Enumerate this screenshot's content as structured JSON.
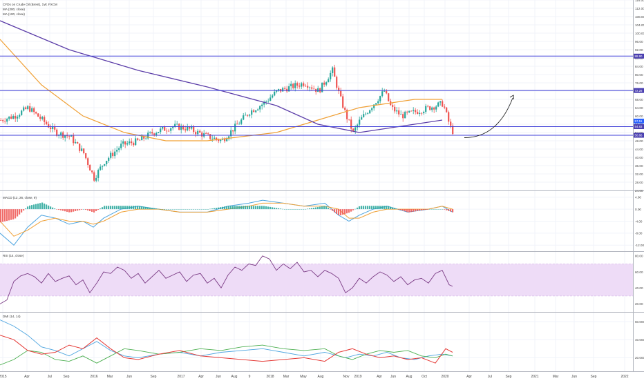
{
  "chart_data": {
    "type": "candlestick",
    "legend": {
      "title": "CFDs on Crude Oil (Brent), 1W, FXCM",
      "ma1": "MA (200, close)",
      "ma2": "MA (100, close)"
    },
    "panes": {
      "macd": "MACD (12, 26, close, 9)",
      "rsi": "RSI (14, close)",
      "dmi": "DMI (14, 14)"
    },
    "colors": {
      "up": "#26a69a",
      "down": "#ef5350",
      "ma_orange": "#f0a035",
      "ma_purple": "#5b3da8",
      "hline": "#3f3fd8",
      "rsi_band": "#eedcf7",
      "rsi_line": "#7a3a84",
      "macd_line": "#4aa3df",
      "signal_line": "#f0a035",
      "di_plus": "#4caf50",
      "di_minus": "#e53935",
      "adx": "#4aa3df"
    },
    "price_axis": {
      "ticks": [
        "116.00",
        "112.00",
        "108.00",
        "104.00",
        "100.00",
        "96.00",
        "92.00",
        "88.00",
        "84.00",
        "80.00",
        "76.00",
        "72.00",
        "68.00",
        "64.00",
        "60.00",
        "56.00",
        "52.00",
        "48.00",
        "44.00",
        "40.00",
        "36.00",
        "32.00",
        "28.00",
        "24.00"
      ],
      "tags": [
        "88.90",
        "72.28",
        "57.51",
        "54.83",
        "50.66"
      ],
      "ylim": [
        24,
        116
      ]
    },
    "horizontal_levels": [
      88.9,
      72.28,
      54.83,
      50.66
    ],
    "ma200": [
      [
        0,
        106
      ],
      [
        100,
        92
      ],
      [
        200,
        82
      ],
      [
        300,
        74
      ],
      [
        400,
        65
      ],
      [
        460,
        56
      ],
      [
        520,
        52
      ],
      [
        560,
        54
      ],
      [
        600,
        56
      ],
      [
        640,
        58
      ]
    ],
    "ma100": [
      [
        0,
        97
      ],
      [
        60,
        75
      ],
      [
        120,
        60
      ],
      [
        180,
        52
      ],
      [
        240,
        48
      ],
      [
        300,
        48
      ],
      [
        350,
        50
      ],
      [
        400,
        52
      ],
      [
        460,
        58
      ],
      [
        520,
        64
      ],
      [
        600,
        68
      ],
      [
        640,
        68
      ]
    ],
    "closes": [
      [
        0,
        58
      ],
      [
        20,
        60
      ],
      [
        40,
        64
      ],
      [
        60,
        58
      ],
      [
        80,
        52
      ],
      [
        100,
        50
      ],
      [
        120,
        42
      ],
      [
        135,
        30
      ],
      [
        150,
        38
      ],
      [
        175,
        46
      ],
      [
        200,
        48
      ],
      [
        220,
        52
      ],
      [
        250,
        55
      ],
      [
        270,
        54
      ],
      [
        300,
        50
      ],
      [
        320,
        48
      ],
      [
        340,
        55
      ],
      [
        360,
        62
      ],
      [
        380,
        66
      ],
      [
        400,
        72
      ],
      [
        420,
        74
      ],
      [
        440,
        76
      ],
      [
        460,
        72
      ],
      [
        480,
        82
      ],
      [
        490,
        70
      ],
      [
        500,
        60
      ],
      [
        510,
        52
      ],
      [
        520,
        58
      ],
      [
        540,
        66
      ],
      [
        555,
        72
      ],
      [
        565,
        64
      ],
      [
        580,
        60
      ],
      [
        600,
        62
      ],
      [
        620,
        64
      ],
      [
        640,
        66
      ],
      [
        650,
        55
      ],
      [
        655,
        52
      ]
    ],
    "macd_axis": {
      "ticks": [
        "4.00",
        "0.00",
        "-4.00",
        "-8.00",
        "-12.00"
      ],
      "ylim": [
        -14,
        6
      ]
    },
    "macd": [
      [
        0,
        -8
      ],
      [
        20,
        -12
      ],
      [
        40,
        -6
      ],
      [
        60,
        -2
      ],
      [
        80,
        -3
      ],
      [
        100,
        -5
      ],
      [
        120,
        -4
      ],
      [
        135,
        -6
      ],
      [
        150,
        -3
      ],
      [
        175,
        0
      ],
      [
        200,
        1
      ],
      [
        230,
        0
      ],
      [
        260,
        -1
      ],
      [
        300,
        -1
      ],
      [
        330,
        1
      ],
      [
        360,
        2
      ],
      [
        380,
        3
      ],
      [
        410,
        2
      ],
      [
        440,
        1
      ],
      [
        470,
        2
      ],
      [
        490,
        -2
      ],
      [
        505,
        -4
      ],
      [
        520,
        -2
      ],
      [
        540,
        0
      ],
      [
        560,
        1
      ],
      [
        590,
        -1
      ],
      [
        620,
        0
      ],
      [
        640,
        1
      ],
      [
        655,
        -1
      ]
    ],
    "signal": [
      [
        0,
        -4
      ],
      [
        20,
        -9
      ],
      [
        40,
        -7
      ],
      [
        60,
        -4
      ],
      [
        80,
        -3
      ],
      [
        100,
        -4
      ],
      [
        120,
        -4
      ],
      [
        135,
        -5
      ],
      [
        150,
        -4
      ],
      [
        175,
        -1
      ],
      [
        200,
        0
      ],
      [
        230,
        0
      ],
      [
        260,
        -1
      ],
      [
        300,
        -1
      ],
      [
        330,
        0
      ],
      [
        360,
        1
      ],
      [
        380,
        2
      ],
      [
        410,
        2
      ],
      [
        440,
        1
      ],
      [
        470,
        1
      ],
      [
        490,
        0
      ],
      [
        505,
        -3
      ],
      [
        520,
        -3
      ],
      [
        540,
        -1
      ],
      [
        560,
        0
      ],
      [
        590,
        0
      ],
      [
        620,
        0
      ],
      [
        640,
        1
      ],
      [
        655,
        0
      ]
    ],
    "rsi_axis": {
      "ticks": [
        "80.00",
        "60.00",
        "40.00",
        "20.00"
      ],
      "ylim": [
        10,
        85
      ],
      "band": [
        30,
        70
      ]
    },
    "rsi": [
      [
        0,
        20
      ],
      [
        10,
        25
      ],
      [
        20,
        48
      ],
      [
        30,
        55
      ],
      [
        40,
        58
      ],
      [
        50,
        54
      ],
      [
        60,
        46
      ],
      [
        70,
        58
      ],
      [
        80,
        48
      ],
      [
        90,
        52
      ],
      [
        100,
        55
      ],
      [
        110,
        44
      ],
      [
        120,
        50
      ],
      [
        130,
        34
      ],
      [
        140,
        46
      ],
      [
        150,
        60
      ],
      [
        160,
        58
      ],
      [
        170,
        66
      ],
      [
        180,
        62
      ],
      [
        190,
        52
      ],
      [
        200,
        58
      ],
      [
        210,
        46
      ],
      [
        220,
        54
      ],
      [
        230,
        62
      ],
      [
        240,
        52
      ],
      [
        250,
        56
      ],
      [
        260,
        60
      ],
      [
        270,
        48
      ],
      [
        280,
        56
      ],
      [
        290,
        58
      ],
      [
        300,
        46
      ],
      [
        310,
        52
      ],
      [
        320,
        40
      ],
      [
        330,
        56
      ],
      [
        340,
        66
      ],
      [
        350,
        62
      ],
      [
        360,
        70
      ],
      [
        370,
        68
      ],
      [
        380,
        80
      ],
      [
        390,
        76
      ],
      [
        400,
        62
      ],
      [
        410,
        70
      ],
      [
        420,
        64
      ],
      [
        430,
        72
      ],
      [
        440,
        60
      ],
      [
        450,
        62
      ],
      [
        460,
        54
      ],
      [
        470,
        62
      ],
      [
        480,
        58
      ],
      [
        490,
        52
      ],
      [
        500,
        34
      ],
      [
        510,
        40
      ],
      [
        520,
        52
      ],
      [
        530,
        46
      ],
      [
        540,
        54
      ],
      [
        550,
        60
      ],
      [
        560,
        56
      ],
      [
        570,
        48
      ],
      [
        580,
        54
      ],
      [
        590,
        44
      ],
      [
        600,
        50
      ],
      [
        610,
        52
      ],
      [
        620,
        46
      ],
      [
        630,
        58
      ],
      [
        640,
        62
      ],
      [
        650,
        44
      ],
      [
        655,
        42
      ]
    ],
    "dmi_axis": {
      "ticks": [
        "60.0000",
        "40.0000",
        "20.0000"
      ],
      "ylim": [
        5,
        70
      ]
    },
    "adx": [
      [
        0,
        62
      ],
      [
        20,
        55
      ],
      [
        40,
        45
      ],
      [
        60,
        32
      ],
      [
        80,
        28
      ],
      [
        100,
        22
      ],
      [
        120,
        30
      ],
      [
        140,
        38
      ],
      [
        160,
        28
      ],
      [
        180,
        22
      ],
      [
        200,
        20
      ],
      [
        230,
        24
      ],
      [
        260,
        26
      ],
      [
        290,
        22
      ],
      [
        320,
        26
      ],
      [
        350,
        28
      ],
      [
        380,
        30
      ],
      [
        410,
        26
      ],
      [
        440,
        22
      ],
      [
        470,
        26
      ],
      [
        500,
        20
      ],
      [
        520,
        24
      ],
      [
        540,
        22
      ],
      [
        560,
        26
      ],
      [
        580,
        20
      ],
      [
        600,
        18
      ],
      [
        620,
        22
      ],
      [
        640,
        24
      ],
      [
        655,
        22
      ]
    ],
    "di_plus": [
      [
        0,
        12
      ],
      [
        20,
        18
      ],
      [
        40,
        28
      ],
      [
        60,
        26
      ],
      [
        80,
        18
      ],
      [
        100,
        16
      ],
      [
        120,
        22
      ],
      [
        140,
        14
      ],
      [
        160,
        22
      ],
      [
        180,
        30
      ],
      [
        200,
        28
      ],
      [
        230,
        24
      ],
      [
        260,
        26
      ],
      [
        290,
        30
      ],
      [
        320,
        28
      ],
      [
        350,
        32
      ],
      [
        380,
        34
      ],
      [
        410,
        30
      ],
      [
        440,
        28
      ],
      [
        470,
        30
      ],
      [
        490,
        22
      ],
      [
        510,
        18
      ],
      [
        530,
        24
      ],
      [
        550,
        28
      ],
      [
        570,
        26
      ],
      [
        590,
        28
      ],
      [
        610,
        22
      ],
      [
        630,
        20
      ],
      [
        645,
        24
      ],
      [
        655,
        22
      ]
    ],
    "di_minus": [
      [
        0,
        45
      ],
      [
        20,
        40
      ],
      [
        40,
        28
      ],
      [
        60,
        24
      ],
      [
        80,
        26
      ],
      [
        100,
        34
      ],
      [
        120,
        30
      ],
      [
        140,
        42
      ],
      [
        160,
        30
      ],
      [
        180,
        20
      ],
      [
        200,
        18
      ],
      [
        230,
        24
      ],
      [
        260,
        28
      ],
      [
        290,
        22
      ],
      [
        320,
        20
      ],
      [
        350,
        18
      ],
      [
        380,
        16
      ],
      [
        410,
        18
      ],
      [
        440,
        20
      ],
      [
        470,
        16
      ],
      [
        490,
        26
      ],
      [
        510,
        30
      ],
      [
        530,
        24
      ],
      [
        550,
        20
      ],
      [
        570,
        22
      ],
      [
        590,
        18
      ],
      [
        610,
        20
      ],
      [
        630,
        14
      ],
      [
        645,
        30
      ],
      [
        655,
        26
      ]
    ],
    "time_axis": {
      "labels": [
        "2015",
        "Apr",
        "Jul",
        "Sep",
        "2016",
        "Mar",
        "Jun",
        "Sep",
        "2017",
        "Apr",
        "Jun",
        "Aug",
        "9",
        "2018",
        "Mar",
        "May",
        "Aug",
        "Nov",
        "2019",
        "Apr",
        "Jun",
        "Aug",
        "Oct",
        "2020",
        "Apr",
        "Jul",
        "Sep",
        "2021",
        "Mar",
        "Jun",
        "Sep",
        "2022"
      ],
      "positions": [
        0,
        35,
        68,
        92,
        132,
        155,
        183,
        218,
        258,
        287,
        312,
        335,
        357,
        387,
        410,
        435,
        460,
        497,
        514,
        545,
        565,
        588,
        610,
        640,
        675,
        705,
        732,
        770,
        800,
        827,
        855,
        900
      ]
    }
  }
}
